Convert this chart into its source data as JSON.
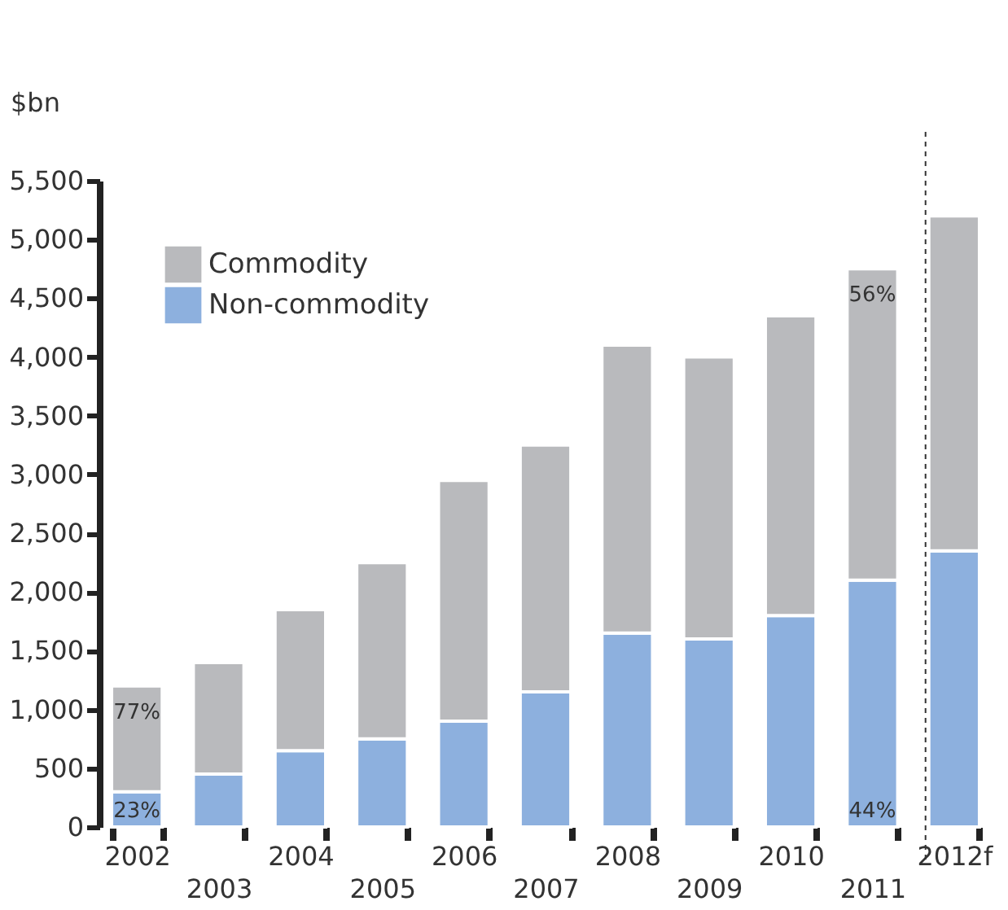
{
  "chart_data": {
    "type": "bar",
    "stacked": true,
    "ylabel": "$bn",
    "categories": [
      "2002",
      "2003",
      "2004",
      "2005",
      "2006",
      "2007",
      "2008",
      "2009",
      "2010",
      "2011",
      "2012f"
    ],
    "series": [
      {
        "name": "Non-commodity",
        "color": "#8db0de",
        "values": [
          300,
          450,
          650,
          750,
          900,
          1150,
          1650,
          1600,
          1800,
          2100,
          2350
        ]
      },
      {
        "name": "Commodity",
        "color": "#b9babd",
        "values": [
          900,
          950,
          1200,
          1500,
          2050,
          2100,
          2450,
          2400,
          2550,
          2650,
          2850
        ]
      }
    ],
    "ylim": [
      0,
      5500
    ],
    "yticks": [
      {
        "value": 0,
        "label": "0"
      },
      {
        "value": 500,
        "label": "500"
      },
      {
        "value": 1000,
        "label": "1,000"
      },
      {
        "value": 1500,
        "label": "1,500"
      },
      {
        "value": 2000,
        "label": "2,000"
      },
      {
        "value": 2500,
        "label": "2,500"
      },
      {
        "value": 3000,
        "label": "3,000"
      },
      {
        "value": 3500,
        "label": "3,500"
      },
      {
        "value": 4000,
        "label": "4,000"
      },
      {
        "value": 4500,
        "label": "4,500"
      },
      {
        "value": 5000,
        "label": "5,000"
      },
      {
        "value": 5500,
        "label": "5,500"
      }
    ],
    "ref_lines": [
      {
        "axis": "x",
        "value": "2012f",
        "color": "#333333",
        "line_style": "dashed"
      }
    ],
    "annotations": [
      "77%",
      "23%",
      "56%",
      "44%"
    ],
    "legend": "top left",
    "grid": false
  }
}
